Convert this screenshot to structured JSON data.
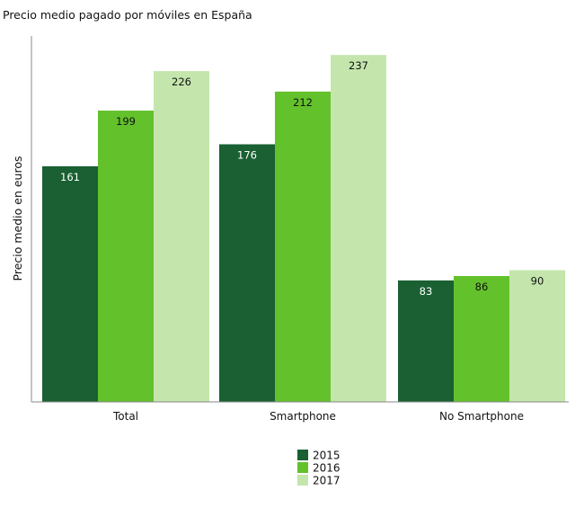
{
  "chart_data": {
    "type": "bar",
    "title": "Precio medio pagado por móviles en España",
    "xlabel": "",
    "ylabel": "Precio medio en euros",
    "categories": [
      "Total",
      "Smartphone",
      "No Smartphone"
    ],
    "series": [
      {
        "name": "2015",
        "values": [
          161,
          176,
          83
        ],
        "color": "#1a6032"
      },
      {
        "name": "2016",
        "values": [
          199,
          212,
          86
        ],
        "color": "#63c12c"
      },
      {
        "name": "2017",
        "values": [
          226,
          237,
          90
        ],
        "color": "#c4e6ad"
      }
    ],
    "data_labels": true,
    "ylim": [
      0,
      250
    ],
    "grid": false,
    "legend_position": "bottom-center",
    "axis_color": "#888888"
  }
}
